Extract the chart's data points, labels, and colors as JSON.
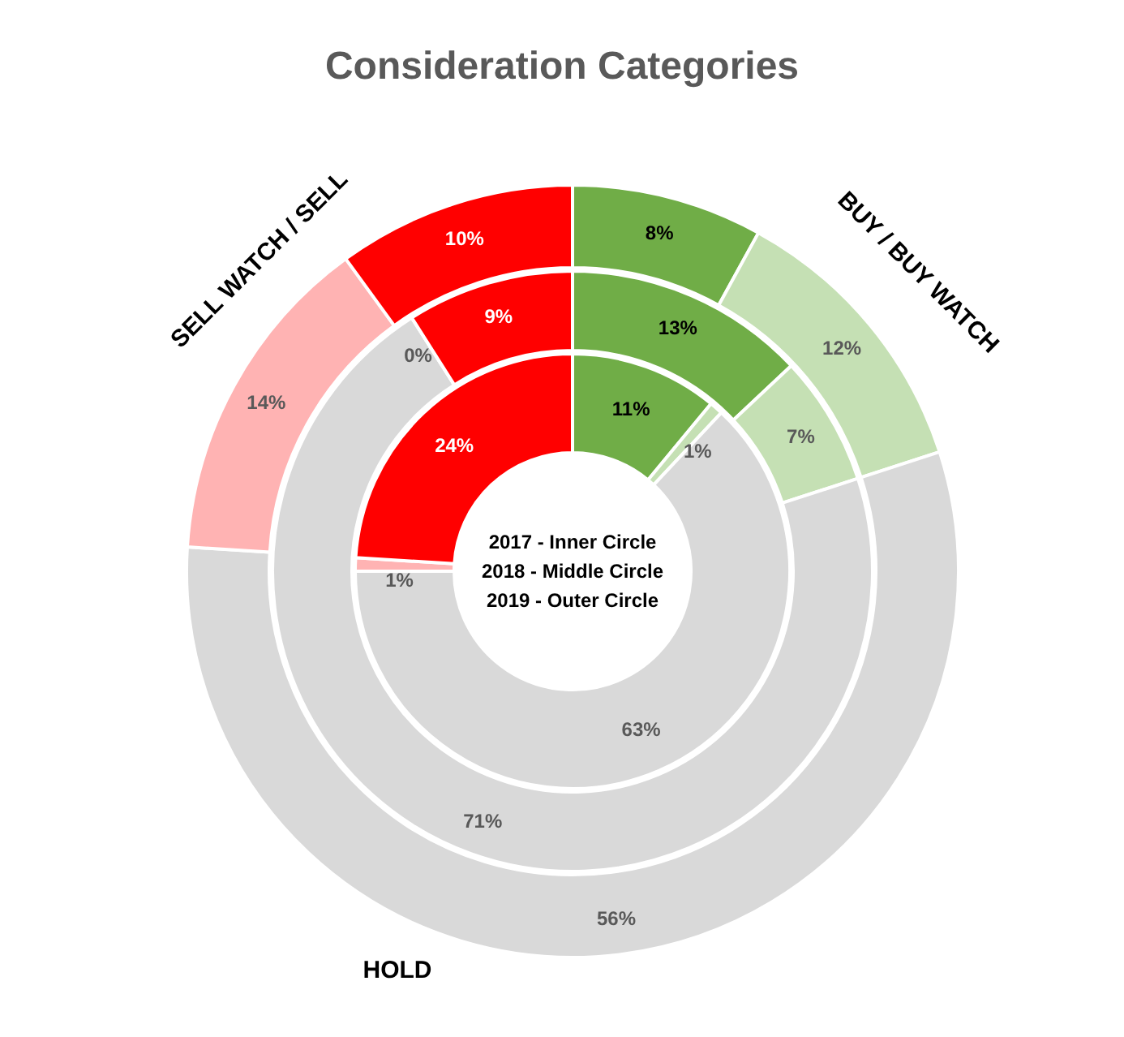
{
  "chart_data": {
    "type": "donut",
    "title": "Consideration Categories",
    "categories": [
      null,
      null,
      null,
      null,
      null
    ],
    "series": [
      {
        "colors": [
          "#70ad47",
          "#c5e0b4",
          "#d9d9d9",
          "#ffb3b3",
          "#ff0000"
        ],
        "values": [
          11,
          1,
          63,
          1,
          24
        ],
        "value_labels": [
          "11%",
          "1%",
          "63%",
          "1%",
          "24%"
        ]
      },
      {
        "colors": [
          "#70ad47",
          "#c5e0b4",
          "#d9d9d9",
          "#ffb3b3",
          "#ff0000"
        ],
        "values": [
          13,
          7,
          71,
          0,
          9
        ],
        "value_labels": [
          "13%",
          "7%",
          "71%",
          "0%",
          "9%"
        ]
      },
      {
        "colors": [
          "#70ad47",
          "#c5e0b4",
          "#d9d9d9",
          "#ffb3b3",
          "#ff0000"
        ],
        "values": [
          8,
          12,
          56,
          14,
          10
        ],
        "value_labels": [
          "8%",
          "12%",
          "56%",
          "14%",
          "10%"
        ]
      }
    ],
    "annotations": [
      "BUY / BUY WATCH",
      "SELL WATCH / SELL",
      "HOLD",
      "2017 - Inner Circle",
      "2018 - Middle Circle",
      "2019 - Outer Circle"
    ],
    "legend": false
  }
}
